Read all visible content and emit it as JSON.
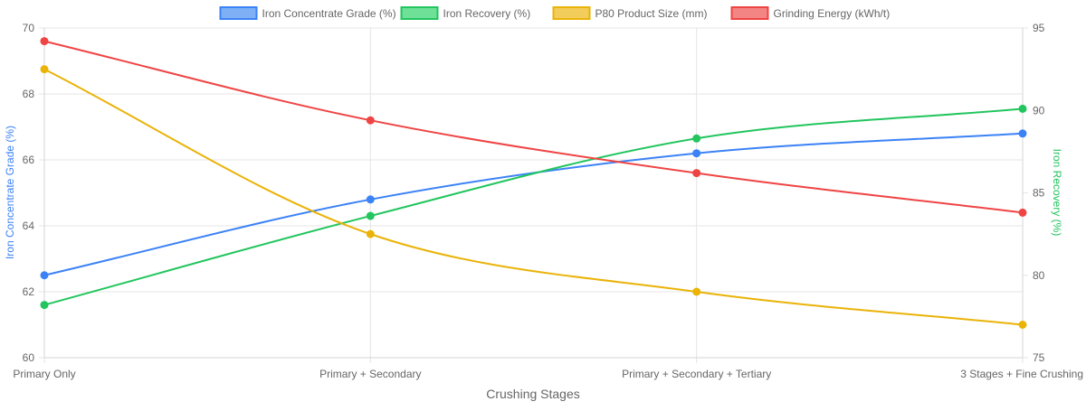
{
  "chart_data": {
    "type": "line",
    "xlabel": "Crushing Stages",
    "categories": [
      "Primary Only",
      "Primary + Secondary",
      "Primary + Secondary + Tertiary",
      "3 Stages + Fine Crushing"
    ],
    "y_left": {
      "label": "Iron Concentrate Grade (%)",
      "color": "#3b82f6",
      "range": [
        60,
        70
      ],
      "ticks": [
        60,
        62,
        64,
        66,
        68,
        70
      ]
    },
    "y_right": {
      "label": "Iron Recovery (%)",
      "color": "#22c55e",
      "range": [
        75,
        95
      ],
      "ticks": [
        75,
        80,
        85,
        90,
        95
      ]
    },
    "grid": true,
    "legend_position": "top-center",
    "series": [
      {
        "name": "Iron Concentrate Grade (%)",
        "axis": "left",
        "color": "#3b82f6",
        "fill": "#7fb0f5",
        "values": [
          62.5,
          64.8,
          66.2,
          66.8
        ]
      },
      {
        "name": "Iron Recovery (%)",
        "axis": "right",
        "color": "#22c55e",
        "fill": "#6ee097",
        "values": [
          78.2,
          83.6,
          88.3,
          90.1
        ]
      },
      {
        "name": "P80 Product Size (mm)",
        "axis": "left",
        "color": "#eab308",
        "fill": "#f3cd5b",
        "values": [
          68.75,
          63.75,
          62.0,
          61.0
        ]
      },
      {
        "name": "Grinding Energy (kWh/t)",
        "axis": "left",
        "color": "#ef4444",
        "fill": "#f48585",
        "values": [
          69.6,
          67.2,
          65.6,
          64.4
        ]
      }
    ]
  }
}
